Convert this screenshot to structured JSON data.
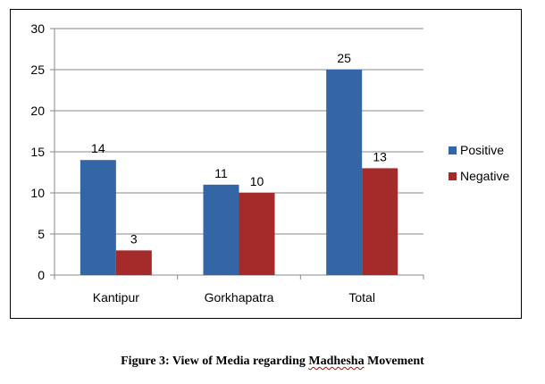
{
  "chart_data": {
    "type": "bar",
    "categories": [
      "Kantipur",
      "Gorkhapatra",
      "Total"
    ],
    "series": [
      {
        "name": "Positive",
        "values": [
          14,
          11,
          25
        ],
        "color": "#3465a4"
      },
      {
        "name": "Negative",
        "values": [
          3,
          10,
          13
        ],
        "color": "#a52a2a"
      }
    ],
    "ylim": [
      0,
      30
    ],
    "yticks": [
      0,
      5,
      10,
      15,
      20,
      25,
      30
    ],
    "grid": true,
    "legend": "right",
    "data_labels": true
  },
  "caption": {
    "prefix": "Figure 3: View of Media regarding ",
    "underlined": "Madhesha",
    "suffix": " Movement"
  }
}
